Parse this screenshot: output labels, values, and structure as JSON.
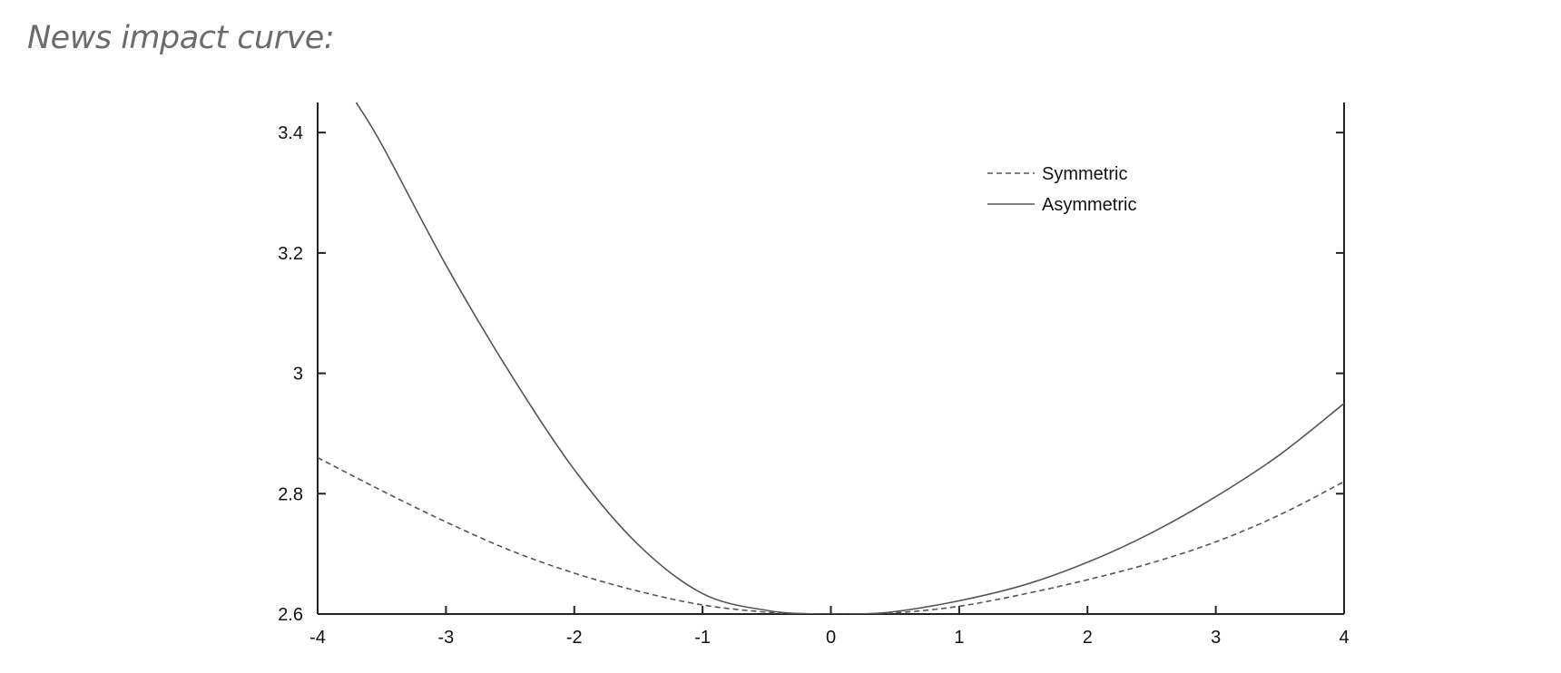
{
  "page": {
    "heading": "News impact curve:"
  },
  "chart_data": {
    "type": "line",
    "title": "",
    "xlabel": "",
    "ylabel": "",
    "xlim": [
      -4,
      4
    ],
    "ylim": [
      2.6,
      3.45
    ],
    "x_ticks": [
      "-4",
      "-3",
      "-2",
      "-1",
      "0",
      "1",
      "2",
      "3",
      "4"
    ],
    "y_ticks": [
      "2.6",
      "2.8",
      "3",
      "3.2",
      "3.4"
    ],
    "grid": false,
    "legend_position": "top-right",
    "series": [
      {
        "name": "Symmetric",
        "style": "dashed",
        "x": [
          -4,
          -3.5,
          -3,
          -2.5,
          -2,
          -1.5,
          -1,
          -0.5,
          -0.2,
          0,
          0.5,
          1,
          1.5,
          2,
          2.5,
          3,
          3.5,
          4
        ],
        "y": [
          2.86,
          2.805,
          2.753,
          2.706,
          2.668,
          2.638,
          2.615,
          2.603,
          2.6,
          2.6,
          2.602,
          2.613,
          2.633,
          2.657,
          2.685,
          2.72,
          2.765,
          2.82
        ]
      },
      {
        "name": "Asymmetric",
        "style": "solid",
        "x": [
          -3.7,
          -3.5,
          -3,
          -2.5,
          -2,
          -1.5,
          -1,
          -0.5,
          -0.1,
          0.2,
          0.5,
          1,
          1.5,
          2,
          2.5,
          3,
          3.5,
          4
        ],
        "y": [
          3.45,
          3.38,
          3.18,
          3.0,
          2.84,
          2.715,
          2.634,
          2.606,
          2.6,
          2.6,
          2.604,
          2.622,
          2.648,
          2.686,
          2.735,
          2.795,
          2.865,
          2.95
        ]
      }
    ]
  }
}
